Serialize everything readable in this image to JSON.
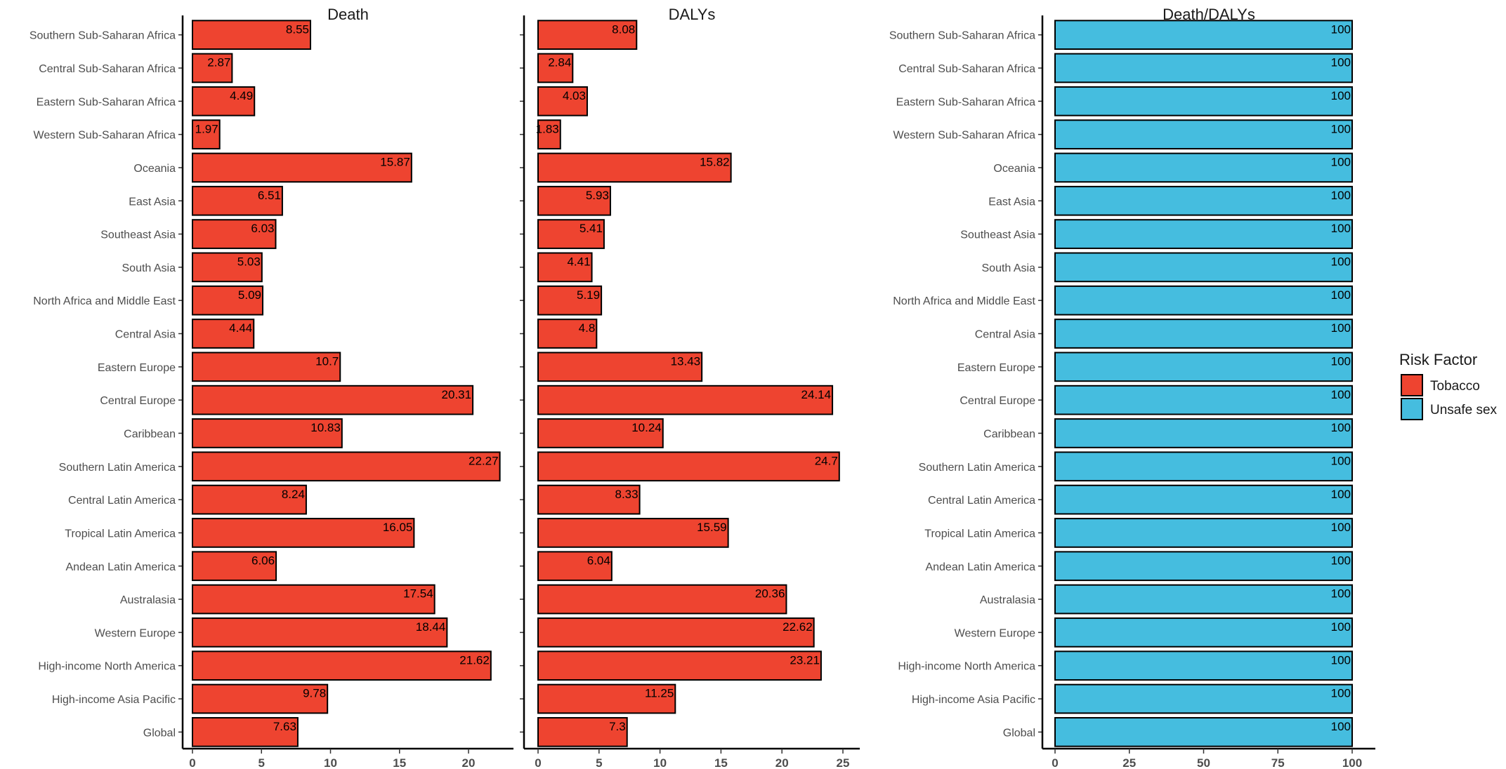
{
  "chart_data": {
    "type": "bar",
    "orientation": "horizontal",
    "categories": [
      "Southern Sub-Saharan Africa",
      "Central Sub-Saharan Africa",
      "Eastern Sub-Saharan Africa",
      "Western Sub-Saharan Africa",
      "Oceania",
      "East Asia",
      "Southeast Asia",
      "South Asia",
      "North Africa and Middle East",
      "Central Asia",
      "Eastern Europe",
      "Central Europe",
      "Caribbean",
      "Southern Latin America",
      "Central Latin America",
      "Tropical Latin America",
      "Andean Latin America",
      "Australasia",
      "Western Europe",
      "High-income North America",
      "High-income Asia Pacific",
      "Global"
    ],
    "panels": [
      {
        "title": "Death",
        "xlim": [
          0,
          23
        ],
        "ticks": [
          0,
          5,
          10,
          15,
          20
        ],
        "series": "Tobacco",
        "values": [
          8.55,
          2.87,
          4.49,
          1.97,
          15.87,
          6.51,
          6.03,
          5.03,
          5.09,
          4.44,
          10.7,
          20.31,
          10.83,
          22.27,
          8.24,
          16.05,
          6.06,
          17.54,
          18.44,
          21.62,
          9.78,
          7.63
        ]
      },
      {
        "title": "DALYs",
        "xlim": [
          0,
          26
        ],
        "ticks": [
          0,
          5,
          10,
          15,
          20,
          25
        ],
        "series": "Tobacco",
        "values": [
          8.08,
          2.84,
          4.03,
          1.83,
          15.82,
          5.93,
          5.41,
          4.41,
          5.19,
          4.8,
          13.43,
          24.14,
          10.24,
          24.7,
          8.33,
          15.59,
          6.04,
          20.36,
          22.62,
          23.21,
          11.25,
          7.3
        ]
      },
      {
        "title": "Death/DALYs",
        "xlim": [
          0,
          105
        ],
        "ticks": [
          0,
          25,
          50,
          75,
          100
        ],
        "series": "Unsafe sex",
        "values": [
          100,
          100,
          100,
          100,
          100,
          100,
          100,
          100,
          100,
          100,
          100,
          100,
          100,
          100,
          100,
          100,
          100,
          100,
          100,
          100,
          100,
          100
        ]
      }
    ],
    "legend": {
      "title": "Risk Factor",
      "position": "right",
      "entries": [
        {
          "name": "Tobacco",
          "color": "#EE4430"
        },
        {
          "name": "Unsafe sex",
          "color": "#45BDDF"
        }
      ]
    }
  }
}
